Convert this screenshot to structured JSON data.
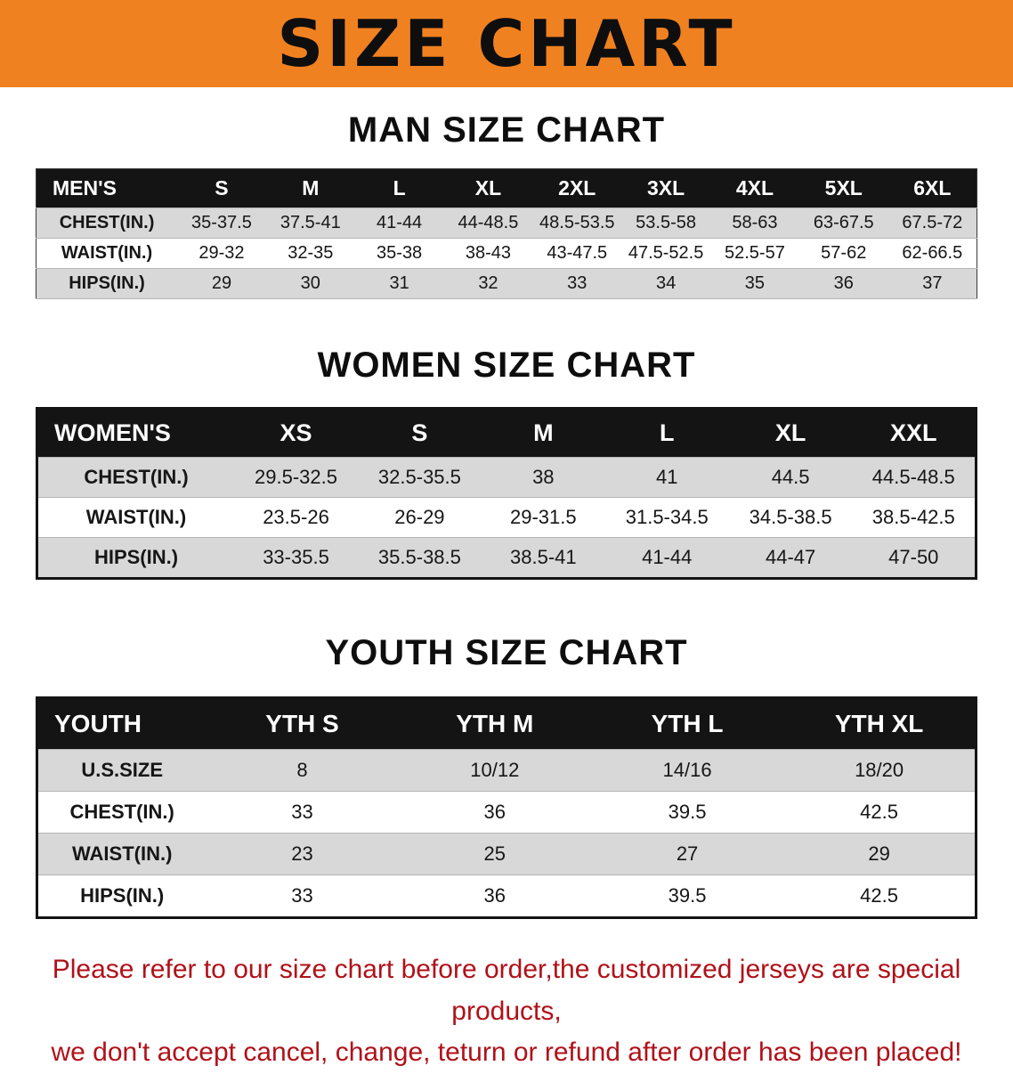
{
  "banner": {
    "title": "SIZE CHART",
    "bg_color": "#F08121",
    "text_color": "#0e0e0e"
  },
  "men": {
    "heading": "MAN SIZE CHART",
    "label": "MEN'S",
    "columns": [
      "S",
      "M",
      "L",
      "XL",
      "2XL",
      "3XL",
      "4XL",
      "5XL",
      "6XL"
    ],
    "rows": [
      {
        "label": "CHEST(IN.)",
        "values": [
          "35-37.5",
          "37.5-41",
          "41-44",
          "44-48.5",
          "48.5-53.5",
          "53.5-58",
          "58-63",
          "63-67.5",
          "67.5-72"
        ]
      },
      {
        "label": "WAIST(IN.)",
        "values": [
          "29-32",
          "32-35",
          "35-38",
          "38-43",
          "43-47.5",
          "47.5-52.5",
          "52.5-57",
          "57-62",
          "62-66.5"
        ]
      },
      {
        "label": "HIPS(IN.)",
        "values": [
          "29",
          "30",
          "31",
          "32",
          "33",
          "34",
          "35",
          "36",
          "37"
        ]
      }
    ]
  },
  "women": {
    "heading": "WOMEN SIZE CHART",
    "label": "WOMEN'S",
    "columns": [
      "XS",
      "S",
      "M",
      "L",
      "XL",
      "XXL"
    ],
    "rows": [
      {
        "label": "CHEST(IN.)",
        "values": [
          "29.5-32.5",
          "32.5-35.5",
          "38",
          "41",
          "44.5",
          "44.5-48.5"
        ]
      },
      {
        "label": "WAIST(IN.)",
        "values": [
          "23.5-26",
          "26-29",
          "29-31.5",
          "31.5-34.5",
          "34.5-38.5",
          "38.5-42.5"
        ]
      },
      {
        "label": "HIPS(IN.)",
        "values": [
          "33-35.5",
          "35.5-38.5",
          "38.5-41",
          "41-44",
          "44-47",
          "47-50"
        ]
      }
    ]
  },
  "youth": {
    "heading": "YOUTH SIZE CHART",
    "label": "YOUTH",
    "columns": [
      "YTH S",
      "YTH M",
      "YTH L",
      "YTH XL"
    ],
    "rows": [
      {
        "label": "U.S.SIZE",
        "values": [
          "8",
          "10/12",
          "14/16",
          "18/20"
        ]
      },
      {
        "label": "CHEST(IN.)",
        "values": [
          "33",
          "36",
          "39.5",
          "42.5"
        ]
      },
      {
        "label": "WAIST(IN.)",
        "values": [
          "23",
          "25",
          "27",
          "29"
        ]
      },
      {
        "label": "HIPS(IN.)",
        "values": [
          "33",
          "36",
          "39.5",
          "42.5"
        ]
      }
    ]
  },
  "footer": {
    "line1": "Please refer to our size chart before order,the customized jerseys are special products,",
    "line2": "we don't accept cancel, change, teturn or refund after order has been placed!",
    "text_color": "#B01119"
  }
}
